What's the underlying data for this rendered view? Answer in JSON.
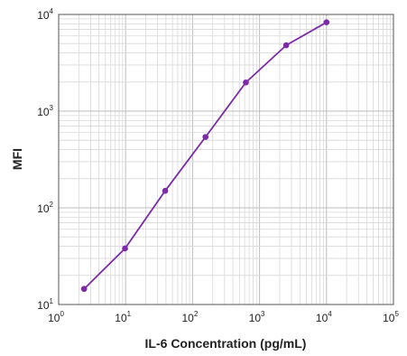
{
  "chart_data": {
    "type": "line",
    "title": "",
    "xlabel": "IL-6 Concentration (pg/mL)",
    "ylabel": "MFI",
    "x_scale": "log",
    "y_scale": "log",
    "xlim": [
      1,
      100000
    ],
    "ylim": [
      10,
      10000
    ],
    "x_ticks": [
      {
        "base": "10",
        "exp": "0",
        "value": 1
      },
      {
        "base": "10",
        "exp": "1",
        "value": 10
      },
      {
        "base": "10",
        "exp": "2",
        "value": 100
      },
      {
        "base": "10",
        "exp": "3",
        "value": 1000
      },
      {
        "base": "10",
        "exp": "4",
        "value": 10000
      },
      {
        "base": "10",
        "exp": "5",
        "value": 100000
      }
    ],
    "y_ticks": [
      {
        "base": "10",
        "exp": "1",
        "value": 10
      },
      {
        "base": "10",
        "exp": "2",
        "value": 100
      },
      {
        "base": "10",
        "exp": "3",
        "value": 1000
      },
      {
        "base": "10",
        "exp": "4",
        "value": 10000
      }
    ],
    "grid": true,
    "series": [
      {
        "color": "#7b2aa8",
        "x": [
          2.4,
          9.8,
          39,
          156,
          625,
          2500,
          10000
        ],
        "y": [
          14.5,
          38,
          150,
          540,
          1980,
          4800,
          8300
        ]
      }
    ]
  }
}
